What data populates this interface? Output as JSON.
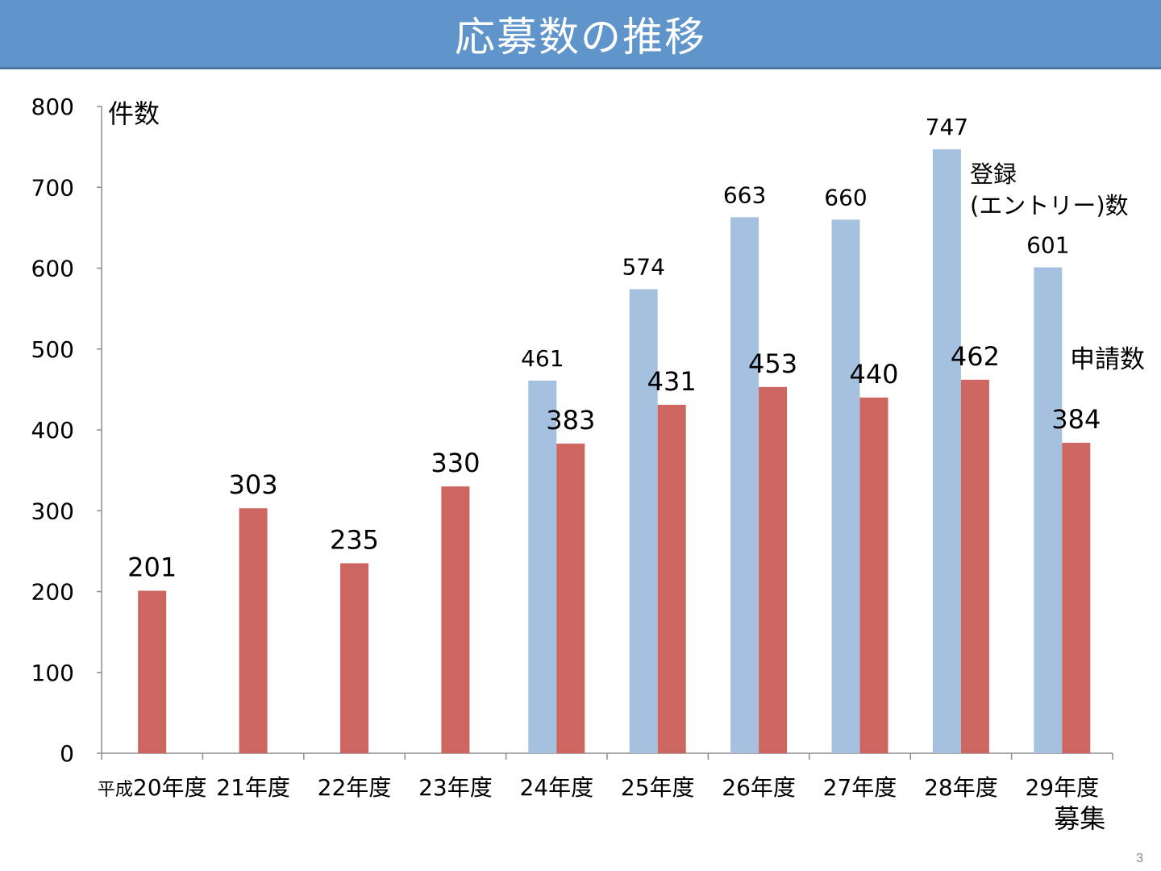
{
  "header": {
    "title": "応募数の推移"
  },
  "slide": {
    "number": "3"
  },
  "chart_data": {
    "type": "bar",
    "title": "応募数の推移",
    "ylabel": "件数",
    "xlabel": "",
    "ylim": [
      0,
      800
    ],
    "yticks": [
      "0",
      "100",
      "200",
      "300",
      "400",
      "500",
      "600",
      "700",
      "800"
    ],
    "categories": [
      "平成20年度",
      "21年度",
      "22年度",
      "23年度",
      "24年度",
      "25年度",
      "26年度",
      "27年度",
      "28年度",
      "29年度"
    ],
    "category_note": "募集",
    "series": [
      {
        "name": "登録(エントリー)数",
        "name_lines": [
          "登録",
          "(エントリー)数"
        ],
        "color": "#a6c1e0",
        "values": [
          null,
          null,
          null,
          null,
          461,
          574,
          663,
          660,
          747,
          601
        ]
      },
      {
        "name": "申請数",
        "name_lines": [
          "申請数"
        ],
        "color": "#cd6560",
        "values": [
          201,
          303,
          235,
          330,
          383,
          431,
          453,
          440,
          462,
          384
        ]
      }
    ],
    "grid": false,
    "legend": "right"
  }
}
